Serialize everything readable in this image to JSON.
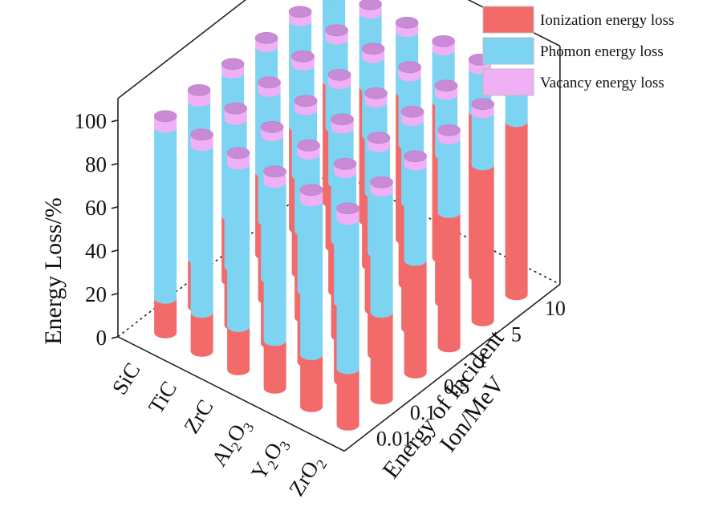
{
  "chart_data": {
    "type": "bar",
    "variant": "3d-stacked-cylinder",
    "title": "",
    "ylabel": "Energy Loss/%",
    "ylim": [
      0,
      100
    ],
    "y_ticks": [
      "0",
      "20",
      "40",
      "60",
      "80",
      "100"
    ],
    "materials": [
      {
        "base": "SiC",
        "sub": []
      },
      {
        "base": "TiC",
        "sub": []
      },
      {
        "base": "ZrC",
        "sub": []
      },
      {
        "base": "Al",
        "sub": [
          "2",
          "O",
          "3"
        ]
      },
      {
        "base": "Y",
        "sub": [
          "2",
          "O",
          "3"
        ]
      },
      {
        "base": "ZrO",
        "sub": [
          "2"
        ]
      }
    ],
    "energy_axis_label_line1": "Energy of Incident",
    "energy_axis_label_line2": "Ion/MeV",
    "energies": [
      "0.01",
      "0.1",
      "0.5",
      "1",
      "5",
      "10"
    ],
    "series": [
      {
        "name": "Ionization energy loss",
        "color": "#f26a6a",
        "values": [
          [
            16,
            22,
            30,
            38,
            47,
            56
          ],
          [
            18,
            27,
            36,
            45,
            55,
            62
          ],
          [
            20,
            30,
            40,
            50,
            60,
            68
          ],
          [
            22,
            33,
            44,
            54,
            64,
            72
          ],
          [
            24,
            36,
            47,
            58,
            68,
            76
          ],
          [
            26,
            40,
            52,
            62,
            72,
            80
          ]
        ]
      },
      {
        "name": "Phomon energy loss",
        "color": "#7dd3f2",
        "values": [
          [
            79,
            73,
            66,
            58,
            49,
            40
          ],
          [
            77,
            68,
            60,
            51,
            41,
            34
          ],
          [
            75,
            66,
            56,
            46,
            36,
            28
          ],
          [
            73,
            63,
            52,
            42,
            32,
            24
          ],
          [
            71,
            60,
            49,
            38,
            28,
            20
          ],
          [
            69,
            56,
            44,
            34,
            24,
            16
          ]
        ]
      },
      {
        "name": "Vacancy energy loss",
        "color": "#f0b0f5",
        "values": [
          [
            5,
            5,
            4,
            4,
            4,
            4
          ],
          [
            5,
            5,
            4,
            4,
            4,
            4
          ],
          [
            5,
            4,
            4,
            4,
            4,
            4
          ],
          [
            5,
            4,
            4,
            4,
            4,
            4
          ],
          [
            5,
            4,
            4,
            4,
            4,
            4
          ],
          [
            5,
            4,
            4,
            4,
            4,
            4
          ]
        ]
      }
    ],
    "legend_position": "top-right",
    "grid": false,
    "colors": {
      "ionization": "#f26a6a",
      "phonon": "#7dd3f2",
      "vacancy": "#f0b0f5",
      "vacancy_cap": "#c98ad6",
      "axis": "#222222"
    }
  }
}
